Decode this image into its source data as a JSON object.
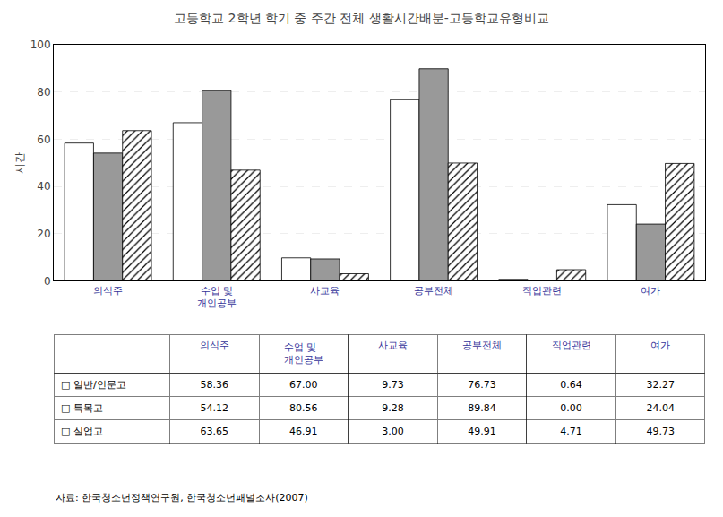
{
  "chart_data": {
    "type": "bar",
    "title": "고등학교 2학년 학기 중 주간 전체 생활시간배분-고등학교유형비교",
    "ylabel": "시간",
    "categories": [
      "의식주",
      "수업 및\n개인공부",
      "사교육",
      "공부전체",
      "직업관련",
      "여가"
    ],
    "series": [
      {
        "name": "일반/인문고",
        "color": "white",
        "values": [
          58.36,
          67.0,
          9.73,
          76.73,
          0.64,
          32.27
        ]
      },
      {
        "name": "특목고",
        "color": "#999999",
        "values": [
          54.12,
          80.56,
          9.28,
          89.84,
          0.0,
          24.04
        ]
      },
      {
        "name": "실업고",
        "color": "white",
        "marker": "hatch",
        "values": [
          63.65,
          46.91,
          3.0,
          49.91,
          4.71,
          49.73
        ]
      }
    ],
    "ylim": [
      0,
      100
    ],
    "yticks": [
      0,
      20,
      40,
      60,
      80,
      100
    ],
    "grid": true,
    "table": {
      "columns": [
        "의식주",
        "수업 및\n개인공부",
        "사교육",
        "공부전체",
        "직업관련",
        "여가"
      ],
      "rows": [
        "□ 일반/인문고",
        "□ 특목고",
        "□ 실업고"
      ],
      "cells": [
        [
          "58.36",
          "67.00",
          "9.73",
          "76.73",
          "0.64",
          "32.27"
        ],
        [
          "54.12",
          "80.56",
          "9.28",
          "89.84",
          "0.00",
          "24.04"
        ],
        [
          "63.65",
          "46.91",
          "3.00",
          "49.91",
          "4.71",
          "49.73"
        ]
      ]
    },
    "source": "자료: 한국청소년정책연구원, 한국청소년패널조사(2007)"
  }
}
